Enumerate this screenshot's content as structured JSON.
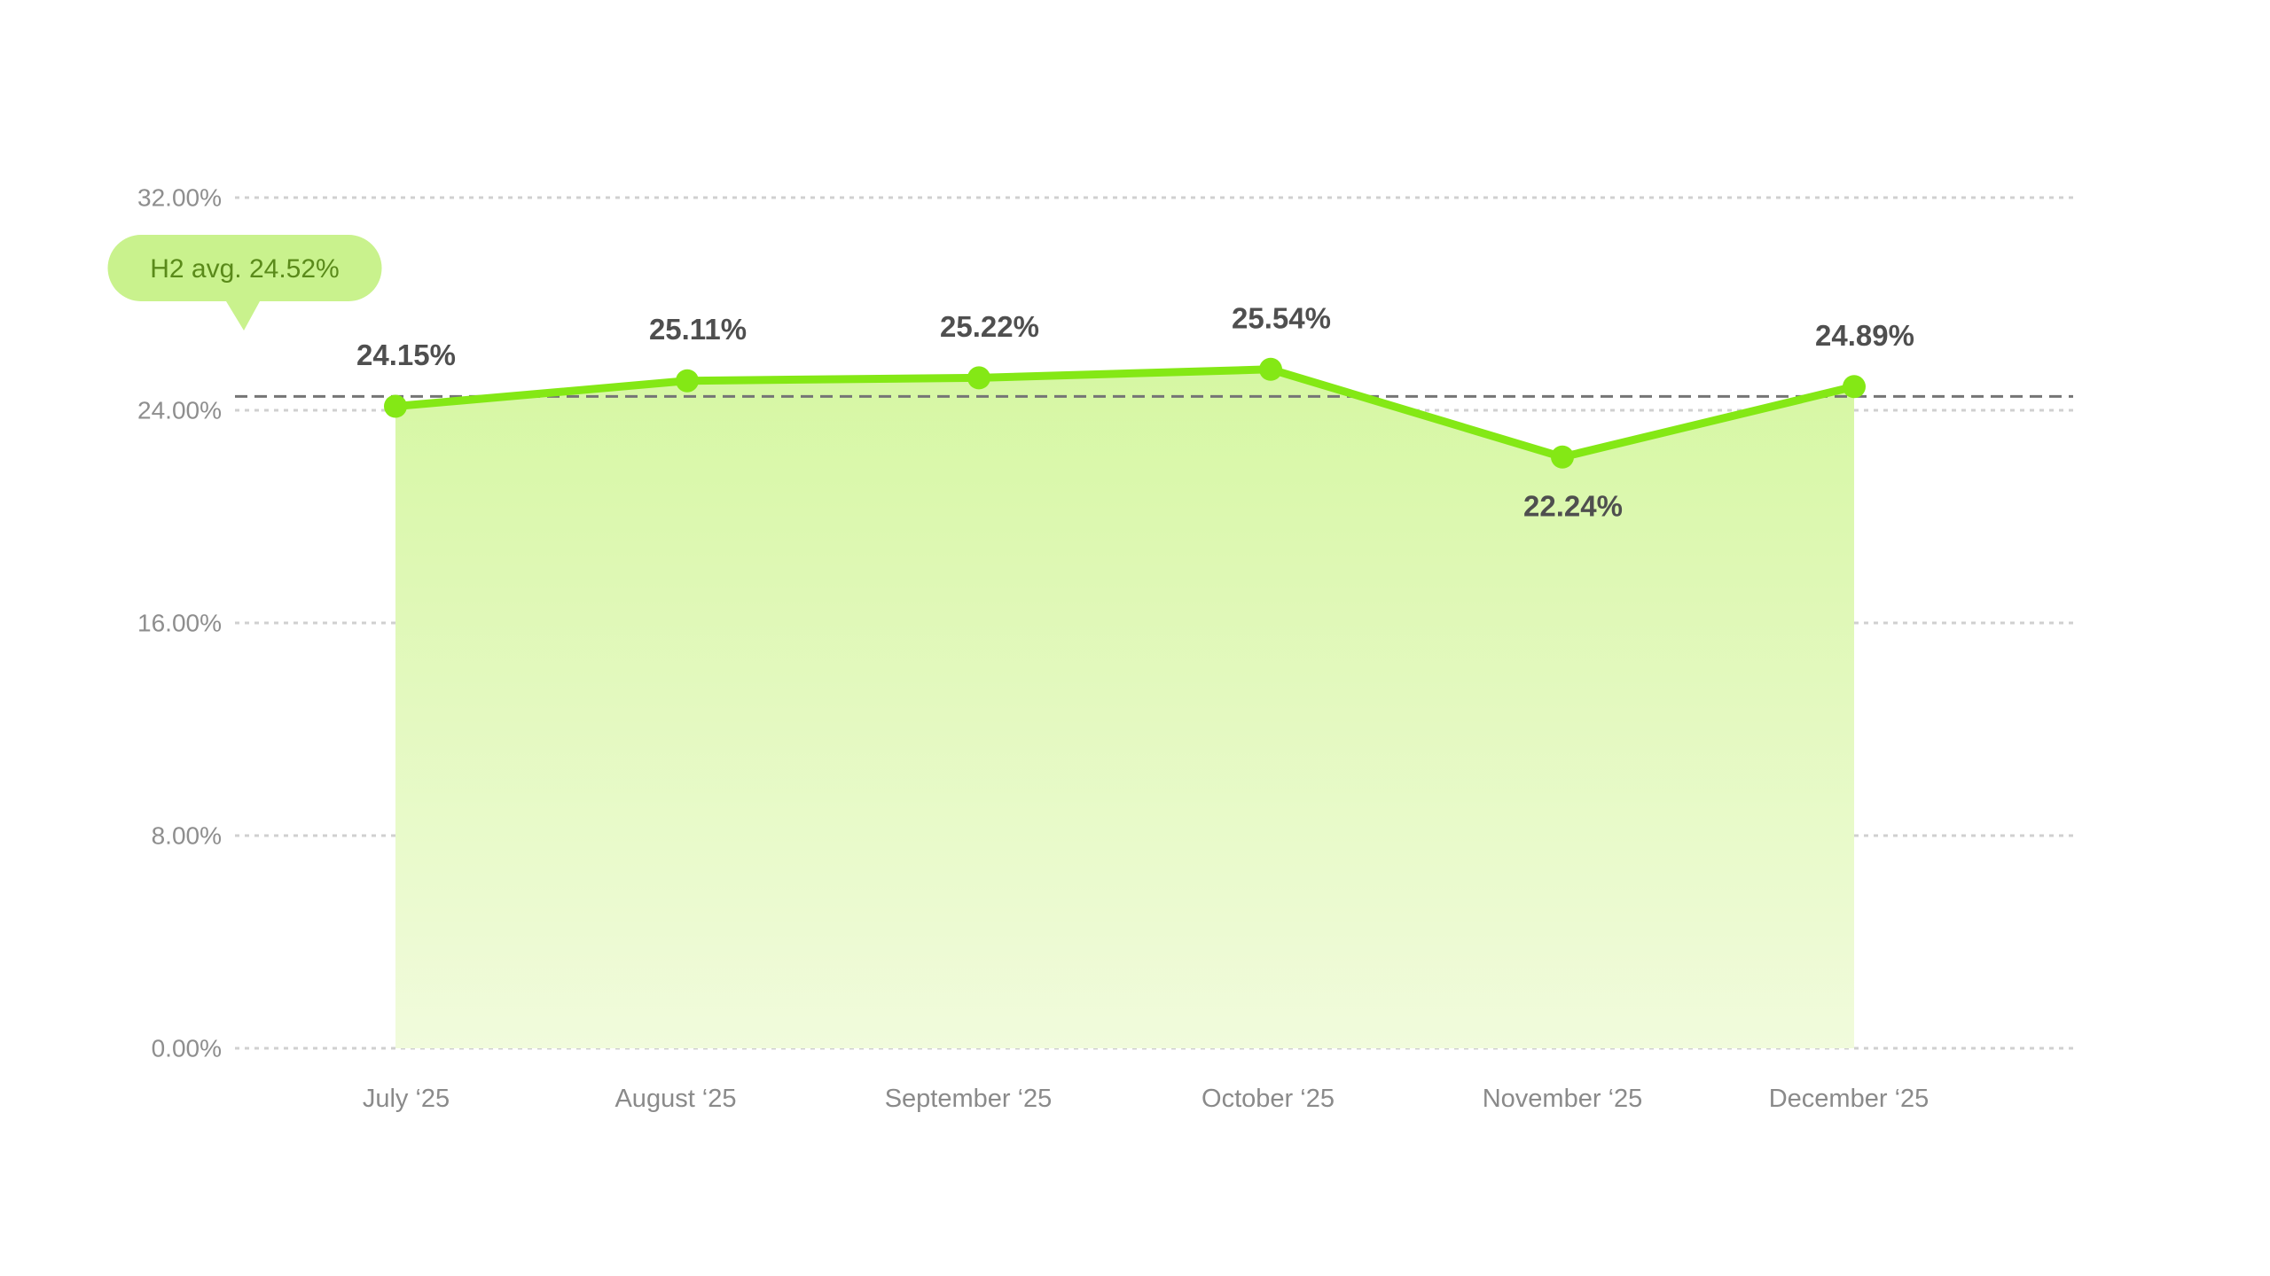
{
  "chart_data": {
    "type": "area",
    "categories": [
      "July ‘25",
      "August ‘25",
      "September ‘25",
      "October ‘25",
      "November ‘25",
      "December ‘25"
    ],
    "series": [
      {
        "values": [
          24.15,
          25.11,
          25.22,
          25.54,
          22.24,
          24.89
        ],
        "data_labels": [
          "24.15%",
          "25.11%",
          "25.22%",
          "25.54%",
          "22.24%",
          "24.89%"
        ]
      }
    ],
    "ylim": [
      0,
      32
    ],
    "yticks": [
      0,
      8,
      16,
      24,
      32
    ],
    "ytick_labels": [
      "0.00%",
      "8.00%",
      "16.00%",
      "24.00%",
      "32.00%"
    ],
    "reference_line": {
      "value": 24.52,
      "label": "H2 avg. 24.52%"
    },
    "grid": true,
    "colors": {
      "line": "#84e815",
      "area_top": "#d6f7a3",
      "area_bottom": "#f1fbdc",
      "avg_line": "#757575",
      "avg_bubble": "#c9f28d",
      "avg_text": "#5a8a1a",
      "grid": "#d0d0d0"
    }
  }
}
